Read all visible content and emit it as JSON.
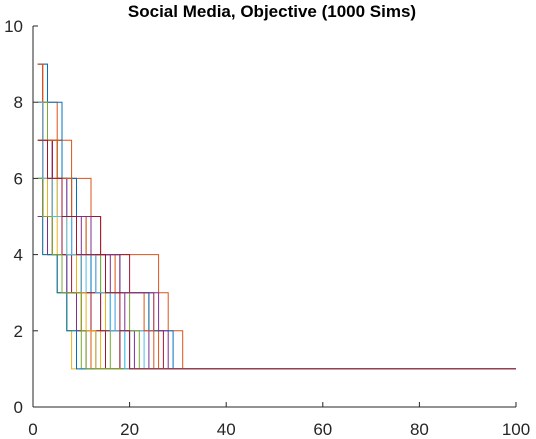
{
  "chart_data": {
    "type": "line",
    "title": "Social Media, Objective (1000 Sims)",
    "xlabel": "",
    "ylabel": "",
    "xlim": [
      0,
      100
    ],
    "ylim": [
      0,
      10
    ],
    "x_ticks": [
      0,
      20,
      40,
      60,
      80,
      100
    ],
    "y_ticks": [
      0,
      2,
      4,
      6,
      8,
      10
    ],
    "grid": false,
    "legend": "none",
    "step": true,
    "series": [
      {
        "color": "#0072BD",
        "x": [
          1,
          2,
          4,
          6,
          8,
          10,
          12,
          14,
          16,
          18,
          20,
          22,
          100
        ],
        "values": [
          6,
          5,
          7,
          5,
          4,
          4,
          3,
          3,
          2,
          2,
          1,
          1,
          1
        ]
      },
      {
        "color": "#D95319",
        "x": [
          1,
          3,
          5,
          8,
          12,
          14,
          18,
          22,
          26,
          28,
          30,
          31,
          100
        ],
        "values": [
          9,
          8,
          7,
          6,
          5,
          4,
          4,
          4,
          3,
          2,
          2,
          1,
          1
        ]
      },
      {
        "color": "#EDB120",
        "x": [
          1,
          2,
          3,
          5,
          7,
          8,
          100
        ],
        "values": [
          9,
          7,
          5,
          3,
          2,
          1,
          1
        ]
      },
      {
        "color": "#7E2F8E",
        "x": [
          1,
          2,
          4,
          6,
          8,
          10,
          13,
          15,
          17,
          19,
          21,
          100
        ],
        "values": [
          8,
          6,
          5,
          5,
          4,
          4,
          3,
          3,
          2,
          2,
          1,
          1
        ]
      },
      {
        "color": "#77AC30",
        "x": [
          1,
          2,
          4,
          6,
          8,
          10,
          12,
          14,
          16,
          100
        ],
        "values": [
          7,
          6,
          5,
          4,
          4,
          3,
          2,
          2,
          1,
          1
        ]
      },
      {
        "color": "#4DBEEE",
        "x": [
          1,
          3,
          5,
          7,
          9,
          11,
          13,
          15,
          17,
          19,
          100
        ],
        "values": [
          7,
          6,
          6,
          5,
          4,
          3,
          3,
          2,
          2,
          1,
          1
        ]
      },
      {
        "color": "#A2142F",
        "x": [
          1,
          2,
          3,
          5,
          8,
          11,
          14,
          17,
          20,
          23,
          25,
          27,
          100
        ],
        "values": [
          9,
          8,
          7,
          6,
          5,
          5,
          4,
          4,
          3,
          3,
          2,
          1,
          1
        ]
      },
      {
        "color": "#0072BD",
        "x": [
          1,
          2,
          4,
          6,
          7,
          9,
          11,
          13,
          100
        ],
        "values": [
          6,
          5,
          4,
          4,
          3,
          2,
          2,
          1,
          1
        ]
      },
      {
        "color": "#D95319",
        "x": [
          1,
          3,
          6,
          9,
          12,
          15,
          18,
          21,
          24,
          26,
          100
        ],
        "values": [
          8,
          7,
          6,
          5,
          4,
          4,
          3,
          3,
          2,
          1,
          1
        ]
      },
      {
        "color": "#EDB120",
        "x": [
          1,
          2,
          4,
          6,
          8,
          10,
          12,
          14,
          100
        ],
        "values": [
          5,
          4,
          4,
          3,
          3,
          2,
          2,
          1,
          1
        ]
      },
      {
        "color": "#7E2F8E",
        "x": [
          1,
          2,
          4,
          7,
          10,
          13,
          16,
          19,
          22,
          24,
          100
        ],
        "values": [
          8,
          7,
          6,
          5,
          4,
          4,
          3,
          2,
          2,
          1,
          1
        ]
      },
      {
        "color": "#77AC30",
        "x": [
          1,
          2,
          3,
          5,
          7,
          9,
          10,
          100
        ],
        "values": [
          6,
          5,
          4,
          3,
          2,
          2,
          1,
          1
        ]
      },
      {
        "color": "#4DBEEE",
        "x": [
          1,
          2,
          5,
          8,
          11,
          14,
          17,
          20,
          23,
          100
        ],
        "values": [
          7,
          6,
          5,
          4,
          4,
          3,
          2,
          2,
          1,
          1
        ]
      },
      {
        "color": "#A2142F",
        "x": [
          1,
          2,
          4,
          6,
          8,
          10,
          12,
          14,
          15,
          100
        ],
        "values": [
          8,
          7,
          5,
          4,
          4,
          3,
          2,
          2,
          1,
          1
        ]
      },
      {
        "color": "#0072BD",
        "x": [
          1,
          3,
          6,
          9,
          12,
          15,
          18,
          21,
          24,
          27,
          29,
          100
        ],
        "values": [
          9,
          8,
          6,
          5,
          4,
          4,
          3,
          3,
          2,
          2,
          1,
          1
        ]
      },
      {
        "color": "#D95319",
        "x": [
          1,
          2,
          4,
          6,
          8,
          10,
          12,
          100
        ],
        "values": [
          5,
          5,
          4,
          3,
          3,
          2,
          1,
          1
        ]
      },
      {
        "color": "#EDB120",
        "x": [
          1,
          2,
          4,
          6,
          9,
          12,
          15,
          18,
          100
        ],
        "values": [
          7,
          6,
          5,
          4,
          3,
          3,
          2,
          1,
          1
        ]
      },
      {
        "color": "#7E2F8E",
        "x": [
          1,
          2,
          3,
          5,
          7,
          9,
          11,
          100
        ],
        "values": [
          6,
          5,
          4,
          4,
          3,
          2,
          1,
          1
        ]
      },
      {
        "color": "#77AC30",
        "x": [
          1,
          3,
          5,
          8,
          11,
          14,
          17,
          20,
          22,
          100
        ],
        "values": [
          8,
          7,
          6,
          5,
          4,
          3,
          3,
          2,
          1,
          1
        ]
      },
      {
        "color": "#4DBEEE",
        "x": [
          1,
          2,
          4,
          6,
          8,
          10,
          12,
          14,
          16,
          18,
          100
        ],
        "values": [
          6,
          5,
          5,
          4,
          4,
          3,
          3,
          2,
          2,
          1,
          1
        ]
      },
      {
        "color": "#A2142F",
        "x": [
          1,
          2,
          4,
          6,
          8,
          11,
          14,
          16,
          18,
          100
        ],
        "values": [
          7,
          5,
          5,
          4,
          3,
          3,
          2,
          2,
          1,
          1
        ]
      },
      {
        "color": "#0072BD",
        "x": [
          1,
          2,
          3,
          5,
          7,
          9,
          100
        ],
        "values": [
          5,
          4,
          4,
          3,
          2,
          1,
          1
        ]
      },
      {
        "color": "#D95319",
        "x": [
          1,
          2,
          5,
          8,
          11,
          14,
          17,
          20,
          23,
          25,
          100
        ],
        "values": [
          9,
          7,
          6,
          5,
          4,
          4,
          3,
          3,
          2,
          1,
          1
        ]
      },
      {
        "color": "#EDB120",
        "x": [
          1,
          3,
          5,
          7,
          9,
          11,
          13,
          100
        ],
        "values": [
          7,
          6,
          5,
          4,
          3,
          2,
          1,
          1
        ]
      },
      {
        "color": "#7E2F8E",
        "x": [
          1,
          2,
          5,
          9,
          12,
          15,
          18,
          21,
          24,
          26,
          28,
          100
        ],
        "values": [
          5,
          5,
          5,
          5,
          4,
          4,
          3,
          3,
          3,
          2,
          1,
          1
        ]
      },
      {
        "color": "#77AC30",
        "x": [
          1,
          2,
          4,
          6,
          8,
          10,
          11,
          100
        ],
        "values": [
          6,
          5,
          4,
          3,
          3,
          2,
          1,
          1
        ]
      },
      {
        "color": "#4DBEEE",
        "x": [
          1,
          2,
          4,
          7,
          10,
          13,
          16,
          19,
          100
        ],
        "values": [
          8,
          6,
          5,
          4,
          4,
          3,
          2,
          1,
          1
        ]
      },
      {
        "color": "#A2142F",
        "x": [
          1,
          3,
          6,
          9,
          12,
          15,
          18,
          20,
          100
        ],
        "values": [
          7,
          6,
          5,
          4,
          4,
          3,
          2,
          1,
          1
        ]
      }
    ]
  }
}
